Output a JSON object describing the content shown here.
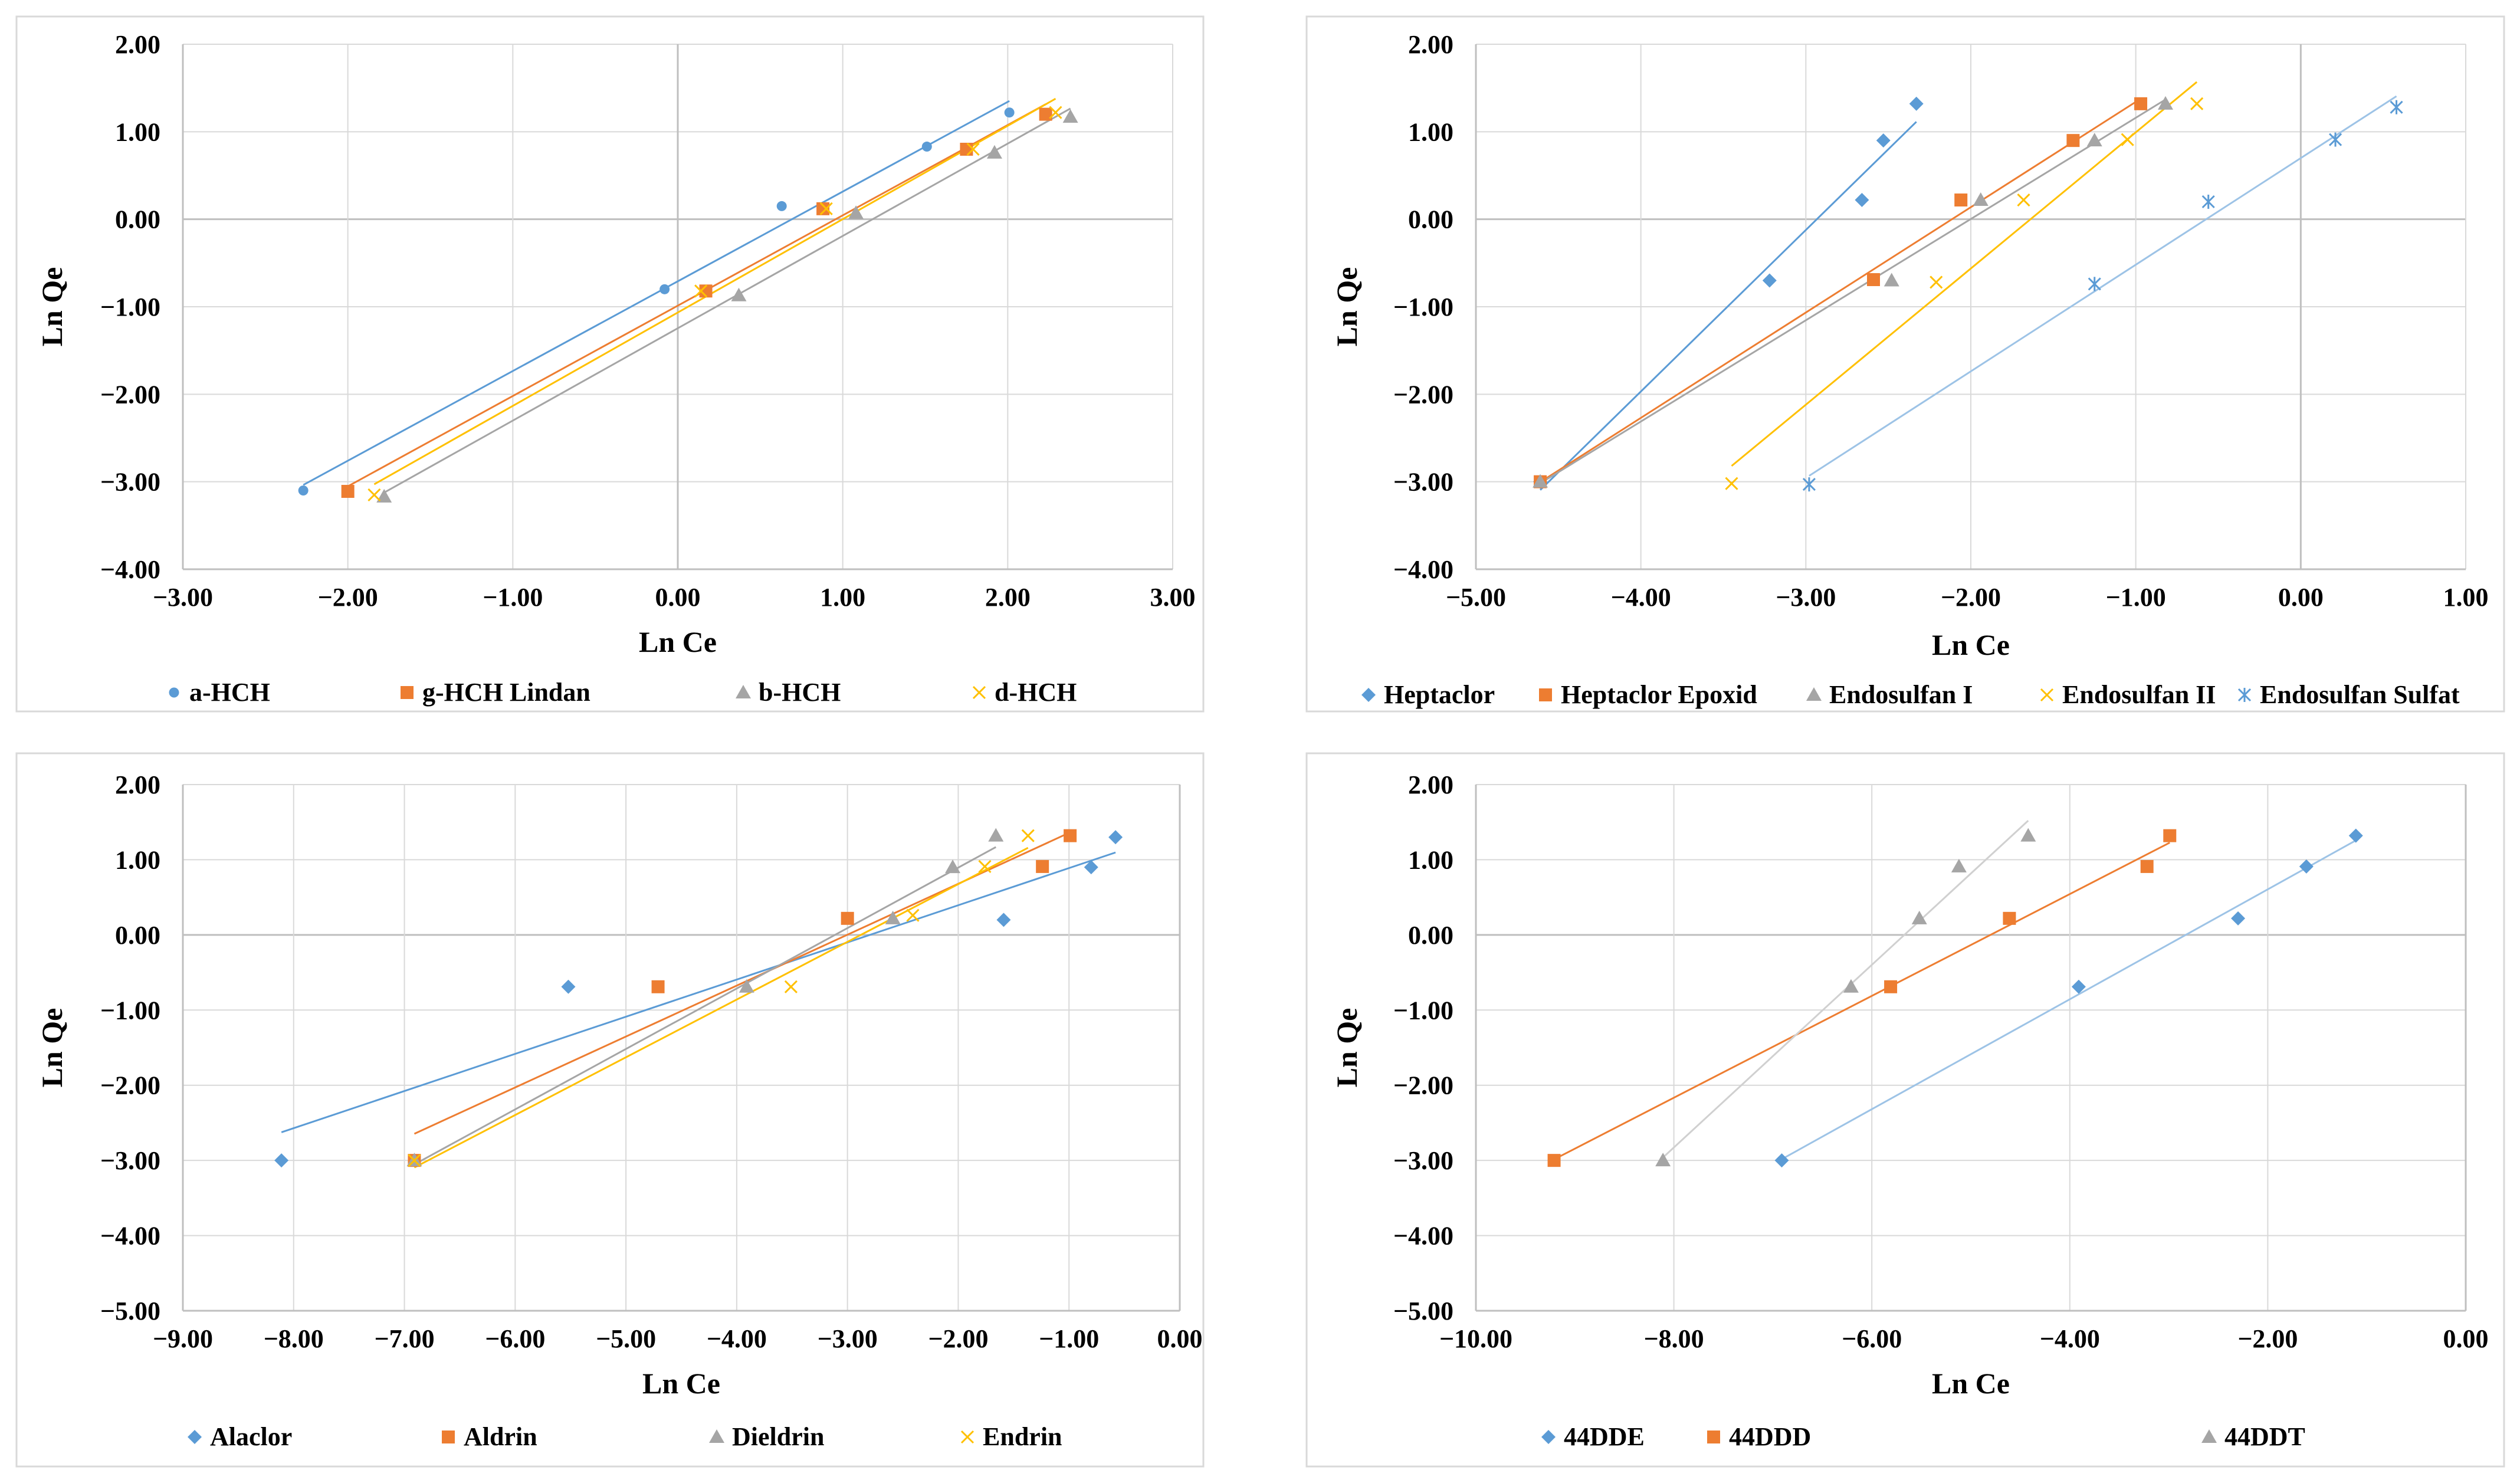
{
  "colors": {
    "blue": "#5B9BD5",
    "orange": "#ED7D31",
    "gray": "#A5A5A5",
    "yellow": "#FFC000",
    "lightblue": "#9DC3E6",
    "lightgray": "#D0D0D0",
    "grid": "#D9D9D9",
    "axis": "#BFBFBF",
    "frame": "#D9D9D9",
    "text": "#000000"
  },
  "chart_data": [
    {
      "type": "scatter",
      "xlabel": "Ln Ce",
      "ylabel": "Ln Qe",
      "xlim": [
        -3,
        3
      ],
      "ylim": [
        -4,
        2
      ],
      "xticks": [
        "−3.00",
        "−2.00",
        "−1.00",
        "0.00",
        "1.00",
        "2.00",
        "3.00"
      ],
      "yticks": [
        "2.00",
        "1.00",
        "0.00",
        "−1.00",
        "−2.00",
        "−3.00",
        "−4.00"
      ],
      "grid": true,
      "trendlines": true,
      "legend_position": "bottom",
      "series": [
        {
          "name": "a-HCH",
          "marker": "circle",
          "color": "blue",
          "trend_color": "blue",
          "x": [
            -2.27,
            -0.08,
            0.63,
            1.51,
            2.01
          ],
          "y": [
            -3.1,
            -0.8,
            0.15,
            0.83,
            1.22
          ]
        },
        {
          "name": "g-HCH Lindan",
          "marker": "square",
          "color": "orange",
          "trend_color": "orange",
          "x": [
            -2.0,
            0.17,
            0.88,
            1.75,
            2.23
          ],
          "y": [
            -3.11,
            -0.82,
            0.12,
            0.8,
            1.2
          ]
        },
        {
          "name": "b-HCH",
          "marker": "triangle",
          "color": "gray",
          "trend_color": "gray",
          "x": [
            -1.78,
            0.37,
            1.08,
            1.92,
            2.38
          ],
          "y": [
            -3.17,
            -0.87,
            0.07,
            0.76,
            1.17
          ]
        },
        {
          "name": "d-HCH",
          "marker": "x",
          "color": "yellow",
          "trend_color": "yellow",
          "x": [
            -1.84,
            0.14,
            0.9,
            1.79,
            2.29
          ],
          "y": [
            -3.15,
            -0.82,
            0.12,
            0.8,
            1.22
          ]
        }
      ]
    },
    {
      "type": "scatter",
      "xlabel": "Ln Ce",
      "ylabel": "Ln Qe",
      "xlim": [
        -5,
        1
      ],
      "ylim": [
        -4,
        2
      ],
      "xticks": [
        "−5.00",
        "−4.00",
        "−3.00",
        "−2.00",
        "−1.00",
        "0.00",
        "1.00"
      ],
      "yticks": [
        "2.00",
        "1.00",
        "0.00",
        "−1.00",
        "−2.00",
        "−3.00",
        "−4.00"
      ],
      "grid": true,
      "trendlines": true,
      "legend_position": "bottom",
      "series": [
        {
          "name": "Heptaclor",
          "marker": "diamond",
          "color": "blue",
          "trend_color": "blue",
          "x": [
            -4.61,
            -3.22,
            -2.66,
            -2.53,
            -2.33
          ],
          "y": [
            -3.0,
            -0.7,
            0.22,
            0.9,
            1.32
          ]
        },
        {
          "name": "Heptaclor Epoxid",
          "marker": "square",
          "color": "orange",
          "trend_color": "orange",
          "x": [
            -4.61,
            -2.59,
            -2.06,
            -1.38,
            -0.97
          ],
          "y": [
            -3.0,
            -0.69,
            0.22,
            0.9,
            1.32
          ]
        },
        {
          "name": "Endosulfan I",
          "marker": "triangle",
          "color": "gray",
          "trend_color": "gray",
          "x": [
            -4.61,
            -2.48,
            -1.94,
            -1.25,
            -0.82
          ],
          "y": [
            -3.0,
            -0.7,
            0.22,
            0.9,
            1.32
          ]
        },
        {
          "name": "Endosulfan II",
          "marker": "x",
          "color": "yellow",
          "trend_color": "yellow",
          "x": [
            -3.45,
            -2.21,
            -1.68,
            -1.05,
            -0.63
          ],
          "y": [
            -3.02,
            -0.72,
            0.22,
            0.91,
            1.32
          ]
        },
        {
          "name": "Endosulfan Sulfat",
          "marker": "star",
          "color": "blue",
          "trend_color": "lightblue",
          "x": [
            -2.98,
            -1.25,
            -0.56,
            0.21,
            0.58
          ],
          "y": [
            -3.03,
            -0.74,
            0.2,
            0.91,
            1.28
          ]
        }
      ]
    },
    {
      "type": "scatter",
      "xlabel": "Ln Ce",
      "ylabel": "Ln Qe",
      "xlim": [
        -9,
        0
      ],
      "ylim": [
        -5,
        2
      ],
      "xticks": [
        "−9.00",
        "−8.00",
        "−7.00",
        "−6.00",
        "−5.00",
        "−4.00",
        "−3.00",
        "−2.00",
        "−1.00",
        "0.00"
      ],
      "yticks": [
        "2.00",
        "1.00",
        "0.00",
        "−1.00",
        "−2.00",
        "−3.00",
        "−4.00",
        "−5.00"
      ],
      "grid": true,
      "trendlines": true,
      "legend_position": "bottom",
      "series": [
        {
          "name": "Alaclor",
          "marker": "diamond",
          "color": "blue",
          "trend_color": "blue",
          "x": [
            -8.11,
            -5.52,
            -1.59,
            -0.8,
            -0.58
          ],
          "y": [
            -3.0,
            -0.69,
            0.2,
            0.9,
            1.3
          ]
        },
        {
          "name": "Aldrin",
          "marker": "square",
          "color": "orange",
          "trend_color": "orange",
          "x": [
            -6.91,
            -4.71,
            -3.0,
            -1.24,
            -0.99
          ],
          "y": [
            -3.0,
            -0.69,
            0.22,
            0.91,
            1.32
          ]
        },
        {
          "name": "Dieldrin",
          "marker": "triangle",
          "color": "gray",
          "trend_color": "gray",
          "x": [
            -6.91,
            -3.91,
            -2.59,
            -2.05,
            -1.66
          ],
          "y": [
            -3.0,
            -0.69,
            0.22,
            0.9,
            1.32
          ]
        },
        {
          "name": "Endrin",
          "marker": "x",
          "color": "yellow",
          "trend_color": "yellow",
          "x": [
            -6.91,
            -3.51,
            -2.41,
            -1.76,
            -1.37
          ],
          "y": [
            -3.0,
            -0.69,
            0.26,
            0.91,
            1.32
          ]
        }
      ]
    },
    {
      "type": "scatter",
      "xlabel": "Ln Ce",
      "ylabel": "Ln Qe",
      "xlim": [
        -10,
        0
      ],
      "ylim": [
        -5,
        2
      ],
      "xticks": [
        "−10.00",
        "−8.00",
        "−6.00",
        "−4.00",
        "−2.00",
        "0.00"
      ],
      "yticks": [
        "2.00",
        "1.00",
        "0.00",
        "−1.00",
        "−2.00",
        "−3.00",
        "−4.00",
        "−5.00"
      ],
      "grid": true,
      "trendlines": true,
      "legend_position": "bottom",
      "series": [
        {
          "name": "44DDE",
          "marker": "diamond",
          "color": "blue",
          "trend_color": "lightblue",
          "x": [
            -6.91,
            -3.91,
            -2.3,
            -1.61,
            -1.11
          ],
          "y": [
            -3.0,
            -0.69,
            0.22,
            0.91,
            1.32
          ]
        },
        {
          "name": "44DDD",
          "marker": "square",
          "color": "orange",
          "trend_color": "orange",
          "x": [
            -9.21,
            -5.81,
            -4.61,
            -3.22,
            -2.99
          ],
          "y": [
            -3.0,
            -0.69,
            0.22,
            0.91,
            1.32
          ]
        },
        {
          "name": "44DDT",
          "marker": "triangle",
          "color": "gray",
          "trend_color": "lightgray",
          "x": [
            -8.11,
            -6.21,
            -5.52,
            -5.12,
            -4.42
          ],
          "y": [
            -3.0,
            -0.69,
            0.22,
            0.91,
            1.32
          ]
        }
      ]
    }
  ]
}
